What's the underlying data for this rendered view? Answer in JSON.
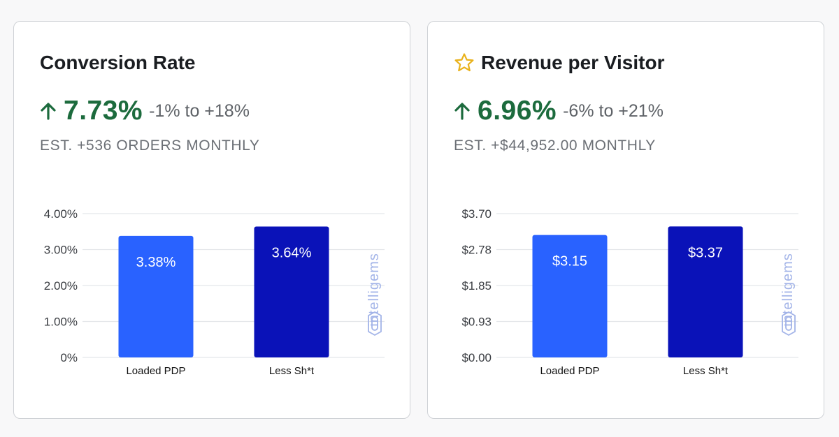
{
  "cards": [
    {
      "title": "Conversion Rate",
      "starred": false,
      "metric_value": "7.73%",
      "metric_range": "-1% to +18%",
      "estimate": "EST. +536 ORDERS MONTHLY",
      "watermark": "intelligems"
    },
    {
      "title": "Revenue per Visitor",
      "starred": true,
      "metric_value": "6.96%",
      "metric_range": "-6% to +21%",
      "estimate": "EST. +$44,952.00 MONTHLY",
      "watermark": "intelligems"
    }
  ],
  "colors": {
    "positive": "#1c6b3d",
    "bar_control": "#2962ff",
    "bar_variant": "#0a12b8",
    "star": "#e9b21c",
    "watermark": "#a3b4e8"
  },
  "icons": {
    "trend": "arrow-up-icon",
    "favorite": "star-outline-icon",
    "brand": "intelligems-logo-icon"
  },
  "chart_data": [
    {
      "type": "bar",
      "categories": [
        "Loaded PDP",
        "Less Sh*t"
      ],
      "values": [
        3.38,
        3.64
      ],
      "data_labels": [
        "3.38%",
        "3.64%"
      ],
      "yticks": [
        "0%",
        "1.00%",
        "2.00%",
        "3.00%",
        "4.00%"
      ],
      "ylim": [
        0,
        4.0
      ],
      "grid": true,
      "bar_colors": [
        "#2962ff",
        "#0a12b8"
      ]
    },
    {
      "type": "bar",
      "categories": [
        "Loaded PDP",
        "Less Sh*t"
      ],
      "values": [
        3.15,
        3.37
      ],
      "data_labels": [
        "$3.15",
        "$3.37"
      ],
      "yticks": [
        "$0.00",
        "$0.93",
        "$1.85",
        "$2.78",
        "$3.70"
      ],
      "ylim": [
        0,
        3.7
      ],
      "grid": true,
      "bar_colors": [
        "#2962ff",
        "#0a12b8"
      ]
    }
  ]
}
